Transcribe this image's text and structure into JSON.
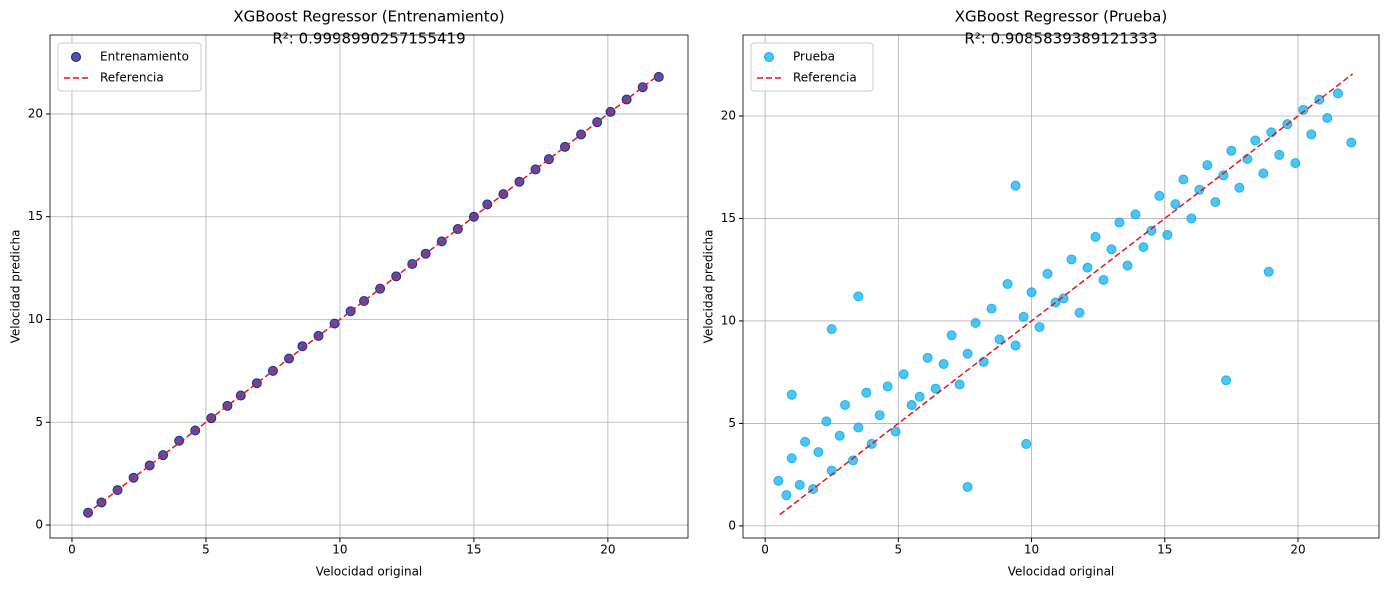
{
  "chart_data": [
    {
      "type": "scatter",
      "title": "XGBoost Regressor (Entrenamiento)",
      "subtitle": "R²: 0.9998990257155419",
      "x_label": "Velocidad original",
      "y_label": "Velocidad predicha",
      "xlim": [
        -0.82,
        22.99
      ],
      "ylim": [
        -0.63,
        23.84
      ],
      "xticks": [
        0,
        5,
        10,
        15,
        20
      ],
      "yticks": [
        0,
        5,
        10,
        15,
        20
      ],
      "grid": true,
      "legend": "upper left",
      "series": [
        {
          "name": "Entrenamiento",
          "kind": "scatter",
          "color": "#1a1a8c",
          "x": [
            0.6,
            1.1,
            1.7,
            2.3,
            2.9,
            3.4,
            4.0,
            4.6,
            5.2,
            5.8,
            6.3,
            6.9,
            7.5,
            8.1,
            8.6,
            9.2,
            9.8,
            10.4,
            10.9,
            11.5,
            12.1,
            12.7,
            13.2,
            13.8,
            14.4,
            15.0,
            15.5,
            16.1,
            16.7,
            17.3,
            17.8,
            18.4,
            19.0,
            19.6,
            20.1,
            20.7,
            21.3,
            21.9
          ],
          "values": [
            0.6,
            1.1,
            1.7,
            2.3,
            2.9,
            3.4,
            4.1,
            4.6,
            5.2,
            5.8,
            6.3,
            6.9,
            7.5,
            8.1,
            8.7,
            9.2,
            9.8,
            10.4,
            10.9,
            11.5,
            12.1,
            12.7,
            13.2,
            13.8,
            14.4,
            15.0,
            15.6,
            16.1,
            16.7,
            17.3,
            17.8,
            18.4,
            19.0,
            19.6,
            20.1,
            20.7,
            21.3,
            21.8
          ]
        },
        {
          "name": "Referencia",
          "kind": "line",
          "color": "#e8141c",
          "dashed": true,
          "x": [
            0.55,
            21.9
          ],
          "values": [
            0.55,
            21.9
          ]
        }
      ]
    },
    {
      "type": "scatter",
      "title": "XGBoost Regressor (Prueba)",
      "subtitle": "R²: 0.9085839389121333",
      "x_label": "Velocidad original",
      "y_label": "Velocidad predicha",
      "xlim": [
        -0.83,
        23.04
      ],
      "ylim": [
        -0.59,
        23.95
      ],
      "xticks": [
        0,
        5,
        10,
        15,
        20
      ],
      "yticks": [
        0,
        5,
        10,
        15,
        20
      ],
      "grid": true,
      "legend": "upper left",
      "series": [
        {
          "name": "Prueba",
          "kind": "scatter",
          "color": "#12b0ee",
          "x": [
            0.5,
            0.8,
            1.0,
            1.3,
            1.5,
            1.8,
            2.0,
            2.3,
            2.5,
            2.8,
            3.0,
            3.3,
            3.5,
            3.8,
            4.0,
            4.3,
            4.6,
            4.9,
            5.2,
            5.5,
            5.8,
            6.1,
            6.4,
            6.7,
            7.0,
            7.3,
            7.6,
            7.9,
            8.2,
            8.5,
            8.8,
            9.1,
            9.4,
            9.7,
            10.0,
            10.3,
            10.6,
            10.9,
            11.2,
            11.5,
            11.8,
            12.1,
            12.4,
            12.7,
            13.0,
            13.3,
            13.6,
            13.9,
            14.2,
            14.5,
            14.8,
            15.1,
            15.4,
            15.7,
            16.0,
            16.3,
            16.6,
            16.9,
            17.2,
            17.5,
            17.8,
            18.1,
            18.4,
            18.7,
            19.0,
            19.3,
            19.6,
            19.9,
            20.2,
            20.5,
            20.8,
            21.1,
            21.5,
            22.0,
            9.8,
            17.3,
            7.6,
            3.5,
            9.4,
            18.9,
            1.0,
            2.5
          ],
          "values": [
            2.2,
            1.5,
            3.3,
            2.0,
            4.1,
            1.8,
            3.6,
            5.1,
            2.7,
            4.4,
            5.9,
            3.2,
            4.8,
            6.5,
            4.0,
            5.4,
            6.8,
            4.6,
            7.4,
            5.9,
            6.3,
            8.2,
            6.7,
            7.9,
            9.3,
            6.9,
            8.4,
            9.9,
            8.0,
            10.6,
            9.1,
            11.8,
            8.8,
            10.2,
            11.4,
            9.7,
            12.3,
            10.9,
            11.1,
            13.0,
            10.4,
            12.6,
            14.1,
            12.0,
            13.5,
            14.8,
            12.7,
            15.2,
            13.6,
            14.4,
            16.1,
            14.2,
            15.7,
            16.9,
            15.0,
            16.4,
            17.6,
            15.8,
            17.1,
            18.3,
            16.5,
            17.9,
            18.8,
            17.2,
            19.2,
            18.1,
            19.6,
            17.7,
            20.3,
            19.1,
            20.8,
            19.9,
            21.1,
            18.7,
            4.0,
            7.1,
            1.9,
            11.2,
            16.6,
            12.4,
            6.4,
            9.6
          ]
        },
        {
          "name": "Referencia",
          "kind": "line",
          "color": "#e8141c",
          "dashed": true,
          "x": [
            0.55,
            22.05
          ],
          "values": [
            0.55,
            22.05
          ]
        }
      ]
    }
  ]
}
